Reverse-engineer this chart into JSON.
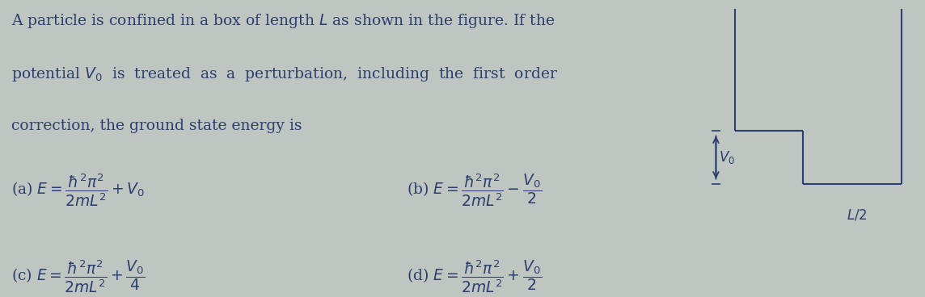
{
  "bg_color": "#bfc5c0",
  "text_color": "#2a3f6f",
  "fig_width": 11.44,
  "fig_height": 3.68,
  "dpi": 100,
  "line1": "A particle is confined in a box of length $L$ as shown in the figure. If the",
  "line2": "potential $V_0$  is  treated  as  a  perturbation,  including  the  first  order",
  "line3": "correction, the ground state energy is",
  "opt_a": "(a) $E = \\dfrac{\\hbar^2\\pi^2}{2mL^2} + V_0$",
  "opt_b": "(b) $E = \\dfrac{\\hbar^2\\pi^2}{2mL^2} - \\dfrac{V_0}{2}$",
  "opt_c": "(c) $E = \\dfrac{\\hbar^2\\pi^2}{2mL^2} + \\dfrac{V_0}{4}$",
  "opt_d": "(d) $E = \\dfrac{\\hbar^2\\pi^2}{2mL^2} + \\dfrac{V_0}{2}$"
}
